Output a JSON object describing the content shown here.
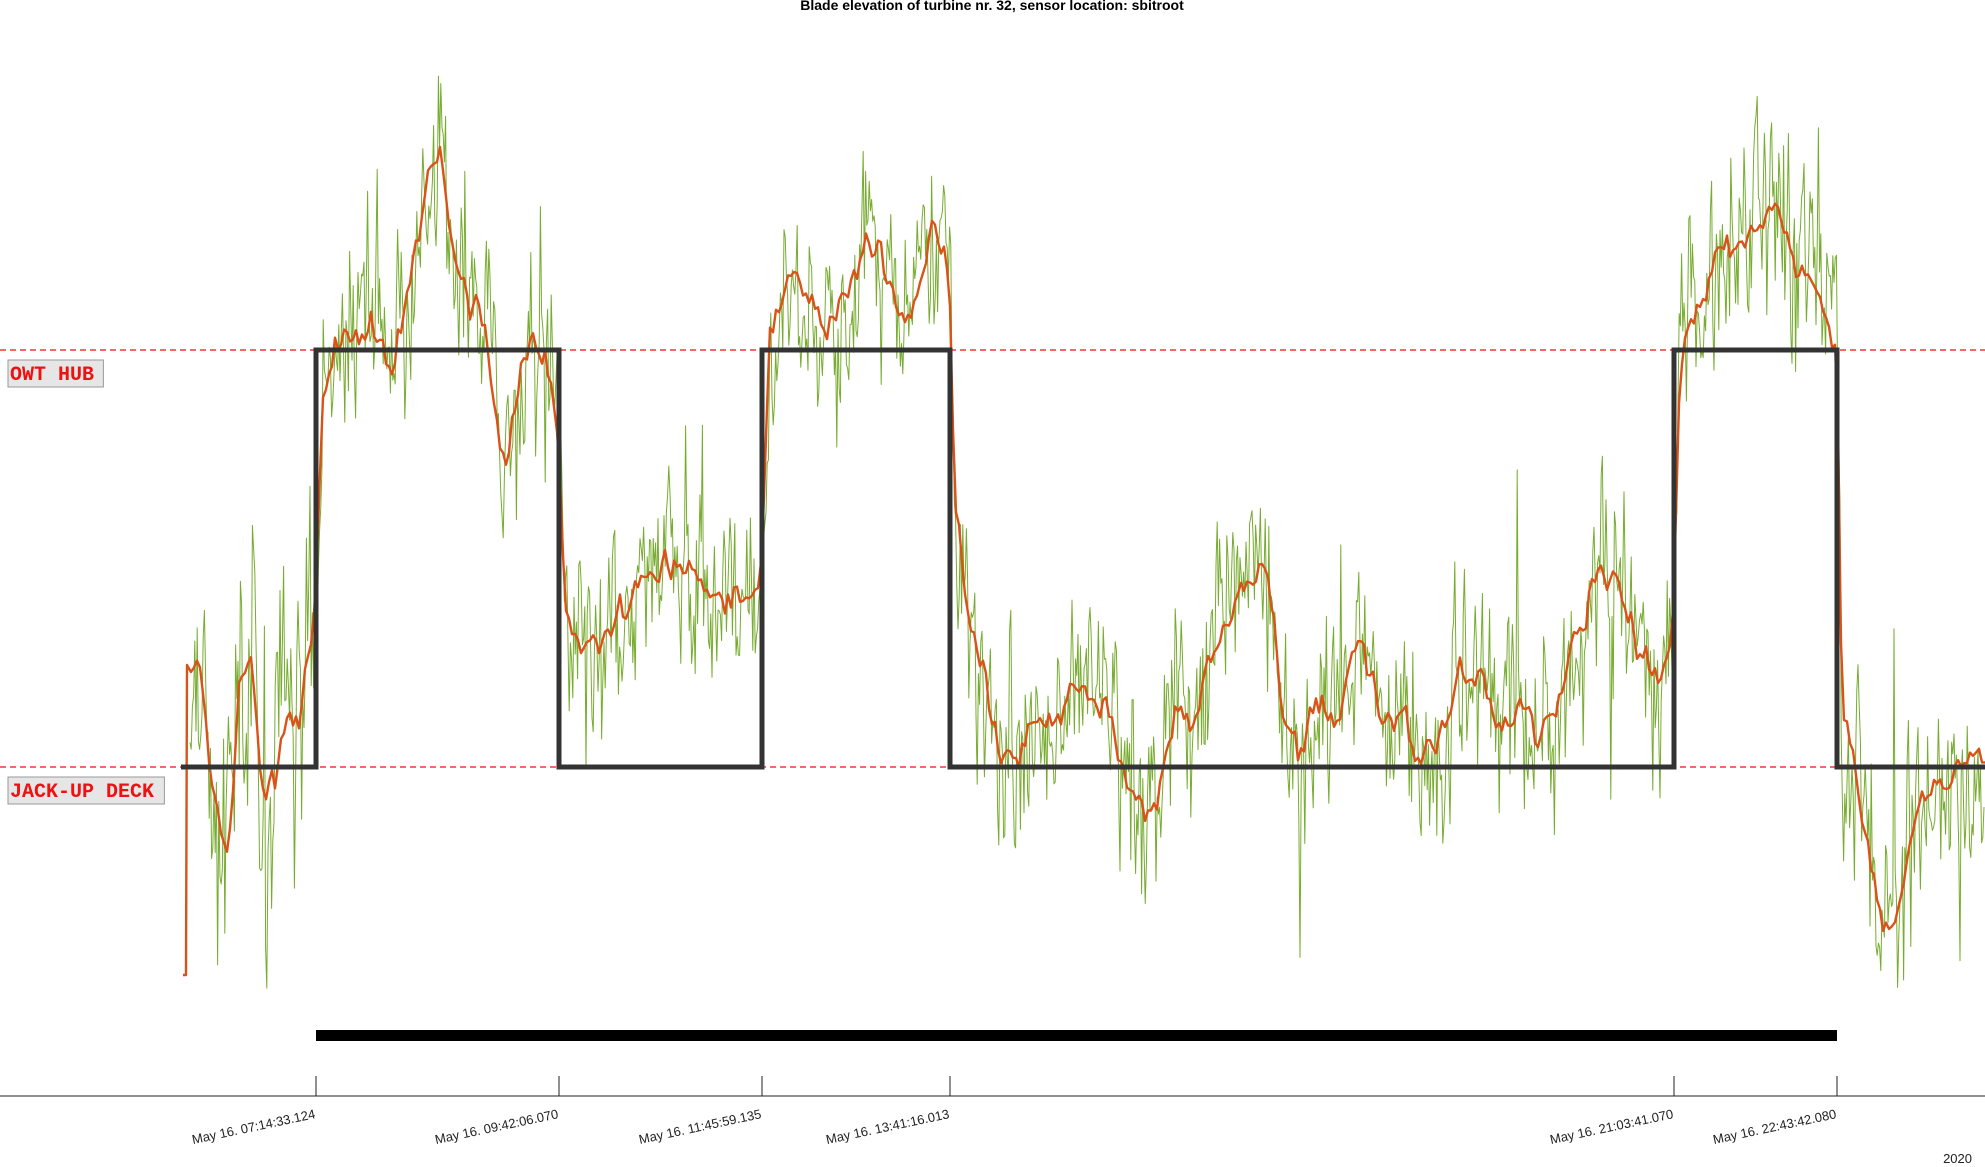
{
  "chart_data": {
    "type": "line",
    "title": "Blade elevation of turbine nr. 32, sensor location: sbitroot",
    "xlabel": "",
    "ylabel": "",
    "year_label": "2020",
    "x_ticks": [
      "May 16. 07:14:33.124",
      "May 16. 09:42:06.070",
      "May 16. 11:45:59.135",
      "May 16. 13:41:16.013",
      "May 16. 21:03:41.070",
      "May 16. 22:43:42.080"
    ],
    "reference_lines": [
      {
        "label": "OWT HUB",
        "level": "upper"
      },
      {
        "label": "JACK-UP DECK",
        "level": "lower"
      }
    ],
    "step_segments": [
      {
        "start": "May 16. 06:00",
        "end": "May 16. 07:14:33.124",
        "level": "JACK-UP DECK"
      },
      {
        "start": "May 16. 07:14:33.124",
        "end": "May 16. 09:42:06.070",
        "level": "OWT HUB"
      },
      {
        "start": "May 16. 09:42:06.070",
        "end": "May 16. 11:45:59.135",
        "level": "JACK-UP DECK"
      },
      {
        "start": "May 16. 11:45:59.135",
        "end": "May 16. 13:41:16.013",
        "level": "OWT HUB"
      },
      {
        "start": "May 16. 13:41:16.013",
        "end": "May 16. 21:03:41.070",
        "level": "JACK-UP DECK"
      },
      {
        "start": "May 16. 21:03:41.070",
        "end": "May 16. 22:43:42.080",
        "level": "OWT HUB"
      },
      {
        "start": "May 16. 22:43:42.080",
        "end": "May 16. 23:33",
        "level": "JACK-UP DECK"
      }
    ],
    "series": [
      {
        "style": "raw",
        "color": "#77ac30"
      },
      {
        "style": "smoothed",
        "color": "#d95319"
      },
      {
        "style": "state",
        "color": "#333333"
      }
    ],
    "bar": {
      "start": "May 16. 07:14:33.124",
      "end": "May 16. 22:43:42.080",
      "color": "#000000"
    },
    "grid": false,
    "legend": "none"
  }
}
